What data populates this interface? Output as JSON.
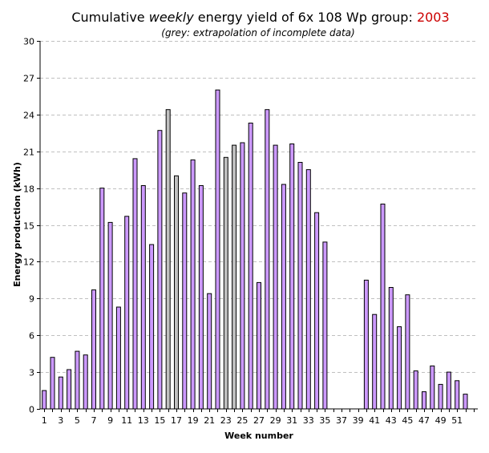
{
  "title": {
    "prefix": "Cumulative ",
    "emphasis": "weekly",
    "suffix": " energy yield of 6x 108 Wp group: ",
    "year": "2003"
  },
  "subtitle": "(grey: extrapolation of incomplete data)",
  "colors": {
    "bar_fill": "#cc99ff",
    "bar_extrapolated_fill": "#c0c0c0",
    "bar_stroke": "#000000",
    "gridline": "#c0c0c0",
    "year": "#cc0000"
  },
  "chart_data": {
    "type": "bar",
    "xlabel": "Week number",
    "ylabel": "Energy production (kWh)",
    "ylim": [
      0,
      30
    ],
    "yticks": [
      0,
      3,
      6,
      9,
      12,
      15,
      18,
      21,
      24,
      27,
      30
    ],
    "xtick_labels": [
      "1",
      "3",
      "5",
      "7",
      "9",
      "11",
      "13",
      "15",
      "17",
      "19",
      "21",
      "23",
      "25",
      "27",
      "29",
      "31",
      "33",
      "35",
      "37",
      "39",
      "41",
      "43",
      "45",
      "47",
      "49",
      "51"
    ],
    "grid": "horizontal dashed",
    "categories": [
      1,
      2,
      3,
      4,
      5,
      6,
      7,
      8,
      9,
      10,
      11,
      12,
      13,
      14,
      15,
      16,
      17,
      18,
      19,
      20,
      21,
      22,
      23,
      24,
      25,
      26,
      27,
      28,
      29,
      30,
      31,
      32,
      33,
      34,
      35,
      36,
      37,
      38,
      39,
      40,
      41,
      42,
      43,
      44,
      45,
      46,
      47,
      48,
      49,
      50,
      51,
      52,
      53
    ],
    "values": [
      1.5,
      4.2,
      2.6,
      3.2,
      4.7,
      4.4,
      9.7,
      18.0,
      15.2,
      8.3,
      15.7,
      20.4,
      18.2,
      13.4,
      22.7,
      24.4,
      19.0,
      17.6,
      20.3,
      18.2,
      9.4,
      26.0,
      20.5,
      21.5,
      21.7,
      23.3,
      10.3,
      24.4,
      21.5,
      18.3,
      21.6,
      20.1,
      19.5,
      16.0,
      13.6,
      0,
      0,
      0,
      0,
      10.5,
      7.7,
      16.7,
      9.9,
      6.7,
      9.3,
      3.1,
      1.4,
      3.5,
      2.0,
      3.0,
      2.3,
      1.2,
      0
    ],
    "extrapolated": [
      16,
      17,
      23,
      24
    ]
  }
}
